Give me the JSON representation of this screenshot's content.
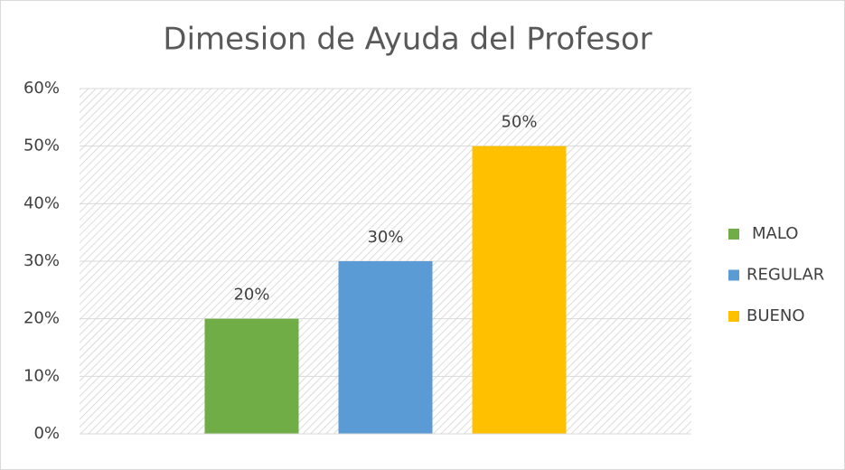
{
  "chart_data": {
    "type": "bar",
    "title": "Dimesion de Ayuda del Profesor",
    "categories": [
      null
    ],
    "series": [
      {
        "name": "MALO",
        "color": "#70ad47",
        "values": [
          20
        ],
        "value_labels": [
          "20%"
        ]
      },
      {
        "name": "REGULAR",
        "color": "#5b9bd5",
        "values": [
          30
        ],
        "value_labels": [
          "30%"
        ]
      },
      {
        "name": "BUENO",
        "color": "#ffc000",
        "values": [
          50
        ],
        "value_labels": [
          "50%"
        ]
      }
    ],
    "ylim": [
      0,
      60
    ],
    "yticks": [
      {
        "value": 0,
        "label": "0%"
      },
      {
        "value": 10,
        "label": "10%"
      },
      {
        "value": 20,
        "label": "20%"
      },
      {
        "value": 30,
        "label": "30%"
      },
      {
        "value": 40,
        "label": "40%"
      },
      {
        "value": 50,
        "label": "50%"
      },
      {
        "value": 60,
        "label": "60%"
      }
    ],
    "grid": true,
    "legend": "right"
  }
}
